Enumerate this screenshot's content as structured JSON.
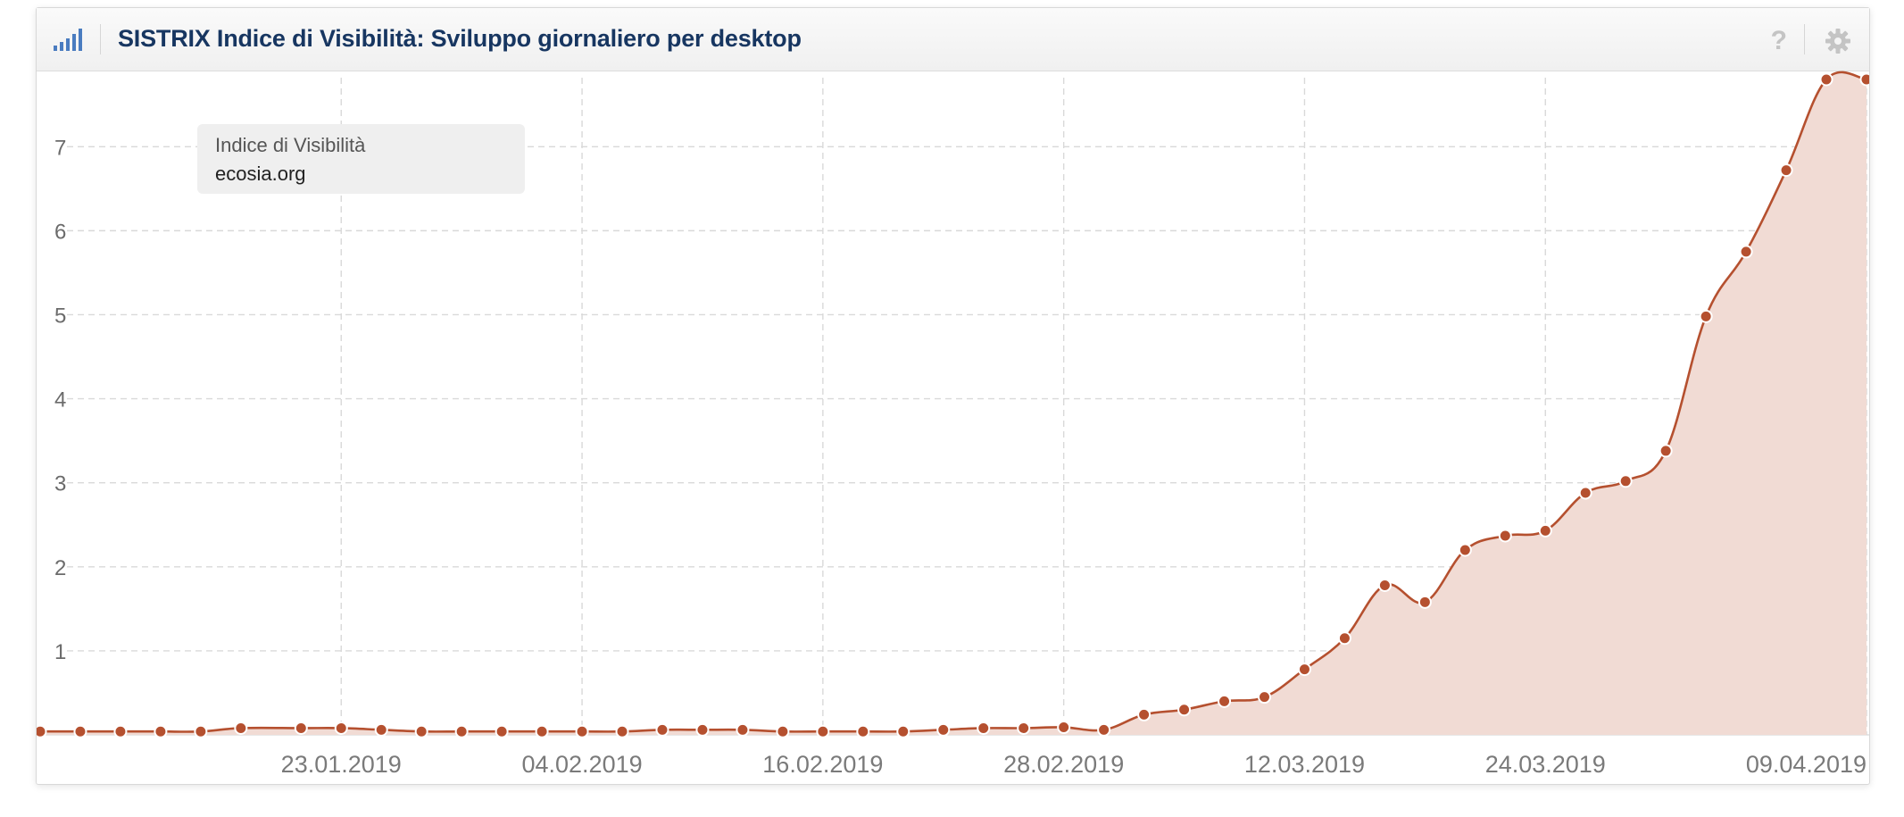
{
  "header": {
    "title": "SISTRIX Indice di Visibilità: Sviluppo giornaliero per desktop",
    "help_symbol": "?",
    "icons": [
      "signal-bars-icon",
      "help-icon",
      "gear-icon"
    ]
  },
  "tooltip": {
    "label": "Indice di Visibilità",
    "domain": "ecosia.org"
  },
  "colors": {
    "line": "#b5502f",
    "area": "#f1dbd4",
    "title": "#173661",
    "icon_blue": "#4a7cc0"
  },
  "chart_data": {
    "type": "area",
    "title": "SISTRIX Indice di Visibilità: Sviluppo giornaliero per desktop",
    "xlabel": "",
    "ylabel": "",
    "ylim": [
      0,
      7.8
    ],
    "grid": true,
    "legend": "none",
    "x_ticks": [
      "23.01.2019",
      "04.02.2019",
      "16.02.2019",
      "28.02.2019",
      "12.03.2019",
      "24.03.2019",
      "09.04.2019"
    ],
    "y_ticks": [
      1,
      2,
      3,
      4,
      5,
      6,
      7
    ],
    "series": [
      {
        "x": [
          "08.01.2019",
          "10.01.2019",
          "12.01.2019",
          "14.01.2019",
          "16.01.2019",
          "18.01.2019",
          "21.01.2019",
          "23.01.2019",
          "25.01.2019",
          "27.01.2019",
          "29.01.2019",
          "31.01.2019",
          "02.02.2019",
          "04.02.2019",
          "06.02.2019",
          "08.02.2019",
          "10.02.2019",
          "12.02.2019",
          "14.02.2019",
          "16.02.2019",
          "18.02.2019",
          "20.02.2019",
          "22.02.2019",
          "24.02.2019",
          "26.02.2019",
          "28.02.2019",
          "02.03.2019",
          "04.03.2019",
          "06.03.2019",
          "08.03.2019",
          "10.03.2019",
          "12.03.2019",
          "14.03.2019",
          "16.03.2019",
          "18.03.2019",
          "20.03.2019",
          "22.03.2019",
          "24.03.2019",
          "26.03.2019",
          "28.03.2019",
          "30.03.2019",
          "01.04.2019",
          "03.04.2019",
          "05.04.2019",
          "07.04.2019",
          "09.04.2019"
        ],
        "values": [
          0.04,
          0.04,
          0.04,
          0.04,
          0.04,
          0.08,
          0.08,
          0.08,
          0.06,
          0.04,
          0.04,
          0.04,
          0.04,
          0.04,
          0.04,
          0.06,
          0.06,
          0.06,
          0.04,
          0.04,
          0.04,
          0.04,
          0.06,
          0.08,
          0.08,
          0.09,
          0.06,
          0.24,
          0.3,
          0.4,
          0.45,
          0.78,
          1.15,
          1.78,
          1.58,
          2.2,
          2.37,
          2.43,
          2.88,
          3.02,
          3.38,
          4.98,
          5.75,
          6.72,
          7.8,
          7.8
        ]
      }
    ]
  }
}
